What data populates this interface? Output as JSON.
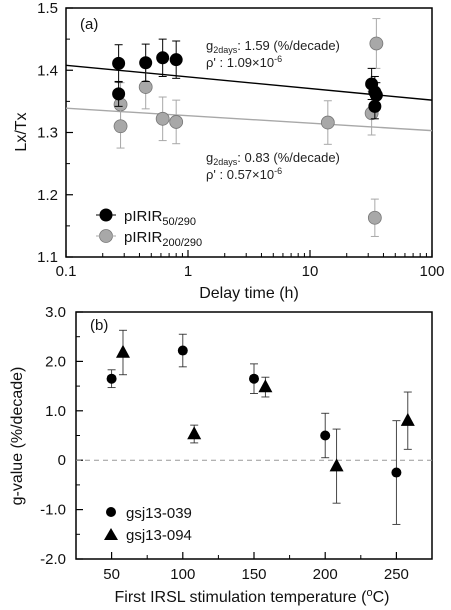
{
  "chart_data": [
    {
      "type": "scatter",
      "panel_label": "(a)",
      "xlabel": "Delay time (h)",
      "ylabel": "Lx/Tx",
      "x_scale": "log",
      "xlim": [
        0.1,
        100
      ],
      "ylim": [
        1.1,
        1.5
      ],
      "x_ticks": [
        "0.1",
        "1",
        "10",
        "100"
      ],
      "y_ticks": [
        "1.1",
        "1.2",
        "1.3",
        "1.4",
        "1.5"
      ],
      "annotations": [
        {
          "g_label": "g",
          "g_sub": "2days",
          "g_value": ": 1.59 (%/decade)",
          "rho_label": "ρ'",
          "rho_value": " : 1.09×10",
          "rho_exp": "-6"
        },
        {
          "g_label": "g",
          "g_sub": "2days",
          "g_value": ": 0.83 (%/decade)",
          "rho_label": "ρ'",
          "rho_value": " : 0.57×10",
          "rho_exp": "-6"
        }
      ],
      "series": [
        {
          "legend_prefix": "pIRIR",
          "legend_sub": "50/290",
          "color": "#000000",
          "points": [
            {
              "x": 0.27,
              "y": 1.411,
              "err": 0.03
            },
            {
              "x": 0.27,
              "y": 1.362,
              "err": 0.02
            },
            {
              "x": 0.45,
              "y": 1.412,
              "err": 0.03
            },
            {
              "x": 0.62,
              "y": 1.42,
              "err": 0.03
            },
            {
              "x": 0.8,
              "y": 1.417,
              "err": 0.03
            },
            {
              "x": 32,
              "y": 1.378,
              "err": 0.025
            },
            {
              "x": 34,
              "y": 1.365,
              "err": 0.025
            },
            {
              "x": 35,
              "y": 1.36,
              "err": 0.02
            },
            {
              "x": 34,
              "y": 1.342,
              "err": 0.02
            }
          ],
          "fit": {
            "x": [
              0.1,
              100
            ],
            "y": [
              1.408,
              1.352
            ]
          }
        },
        {
          "legend_prefix": "pIRIR",
          "legend_sub": "200/290",
          "color": "#a8a8a8",
          "points": [
            {
              "x": 0.28,
              "y": 1.345,
              "err": 0.035
            },
            {
              "x": 0.28,
              "y": 1.31,
              "err": 0.035
            },
            {
              "x": 0.45,
              "y": 1.373,
              "err": 0.035
            },
            {
              "x": 0.62,
              "y": 1.322,
              "err": 0.035
            },
            {
              "x": 0.8,
              "y": 1.317,
              "err": 0.035
            },
            {
              "x": 14,
              "y": 1.316,
              "err": 0.035
            },
            {
              "x": 32,
              "y": 1.331,
              "err": 0.035
            },
            {
              "x": 35,
              "y": 1.443,
              "err": 0.04
            },
            {
              "x": 34,
              "y": 1.163,
              "err": 0.03
            }
          ],
          "fit": {
            "x": [
              0.1,
              100
            ],
            "y": [
              1.339,
              1.303
            ]
          }
        }
      ]
    },
    {
      "type": "scatter",
      "panel_label": "(b)",
      "xlabel_prefix": "First IRSL stimulation temperature (",
      "xlabel_sup": "o",
      "xlabel_suffix": "C)",
      "ylabel": "g-value (%/decade)",
      "xlim": [
        25,
        275
      ],
      "ylim": [
        -2.0,
        3.0
      ],
      "x_ticks": [
        50,
        100,
        150,
        200,
        250
      ],
      "y_ticks": [
        "-2.0",
        "-1.0",
        "0",
        "1.0",
        "2.0",
        "3.0"
      ],
      "zero_line": "dashed",
      "series": [
        {
          "name": "gsj13-039",
          "marker": "circle",
          "points": [
            {
              "x": 50,
              "y": 1.65,
              "err": 0.18
            },
            {
              "x": 100,
              "y": 2.22,
              "err": 0.33
            },
            {
              "x": 150,
              "y": 1.65,
              "err": 0.3
            },
            {
              "x": 200,
              "y": 0.5,
              "err": 0.45
            },
            {
              "x": 250,
              "y": -0.25,
              "err": 1.05
            }
          ]
        },
        {
          "name": "gsj13-094",
          "marker": "triangle",
          "points": [
            {
              "x": 58,
              "y": 2.18,
              "err": 0.45
            },
            {
              "x": 108,
              "y": 0.53,
              "err": 0.18
            },
            {
              "x": 158,
              "y": 1.48,
              "err": 0.2
            },
            {
              "x": 208,
              "y": -0.12,
              "err": 0.75
            },
            {
              "x": 258,
              "y": 0.8,
              "err": 0.58
            }
          ]
        }
      ]
    }
  ]
}
